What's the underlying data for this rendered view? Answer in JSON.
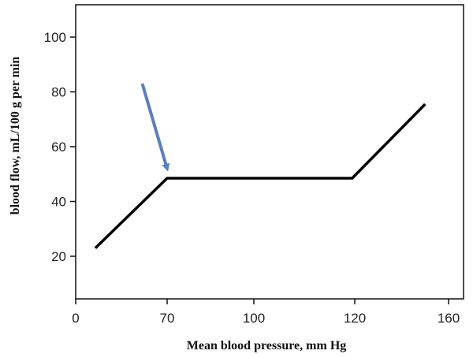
{
  "chart_data": {
    "type": "line",
    "title": "",
    "xlabel": "Mean blood pressure, mm Hg",
    "ylabel": "blood flow, mL/100 g per min",
    "x_ticks": [
      {
        "label": "0",
        "value": 0
      },
      {
        "label": "70",
        "value": 70
      },
      {
        "label": "100",
        "value": 100
      },
      {
        "label": "120",
        "value": 120
      },
      {
        "label": "160",
        "value": 160
      }
    ],
    "y_ticks": [
      {
        "label": "20",
        "value": 20
      },
      {
        "label": "40",
        "value": 40
      },
      {
        "label": "60",
        "value": 60
      },
      {
        "label": "80",
        "value": 80
      },
      {
        "label": "100",
        "value": 100
      }
    ],
    "xlim": [
      0,
      160
    ],
    "ylim": [
      14,
      110
    ],
    "grid": false,
    "series": [
      {
        "points": [
          {
            "x": 15,
            "y": 23
          },
          {
            "x": 70,
            "y": 48.5
          },
          {
            "x": 119.5,
            "y": 48.5
          },
          {
            "x": 150,
            "y": 75.5
          }
        ],
        "color": "#000000"
      }
    ],
    "annotations": [
      {
        "type": "arrow",
        "color": "#5b7fbe",
        "from": {
          "x": 51,
          "y": 83
        },
        "to": {
          "x": 70,
          "y": 52
        }
      }
    ]
  }
}
